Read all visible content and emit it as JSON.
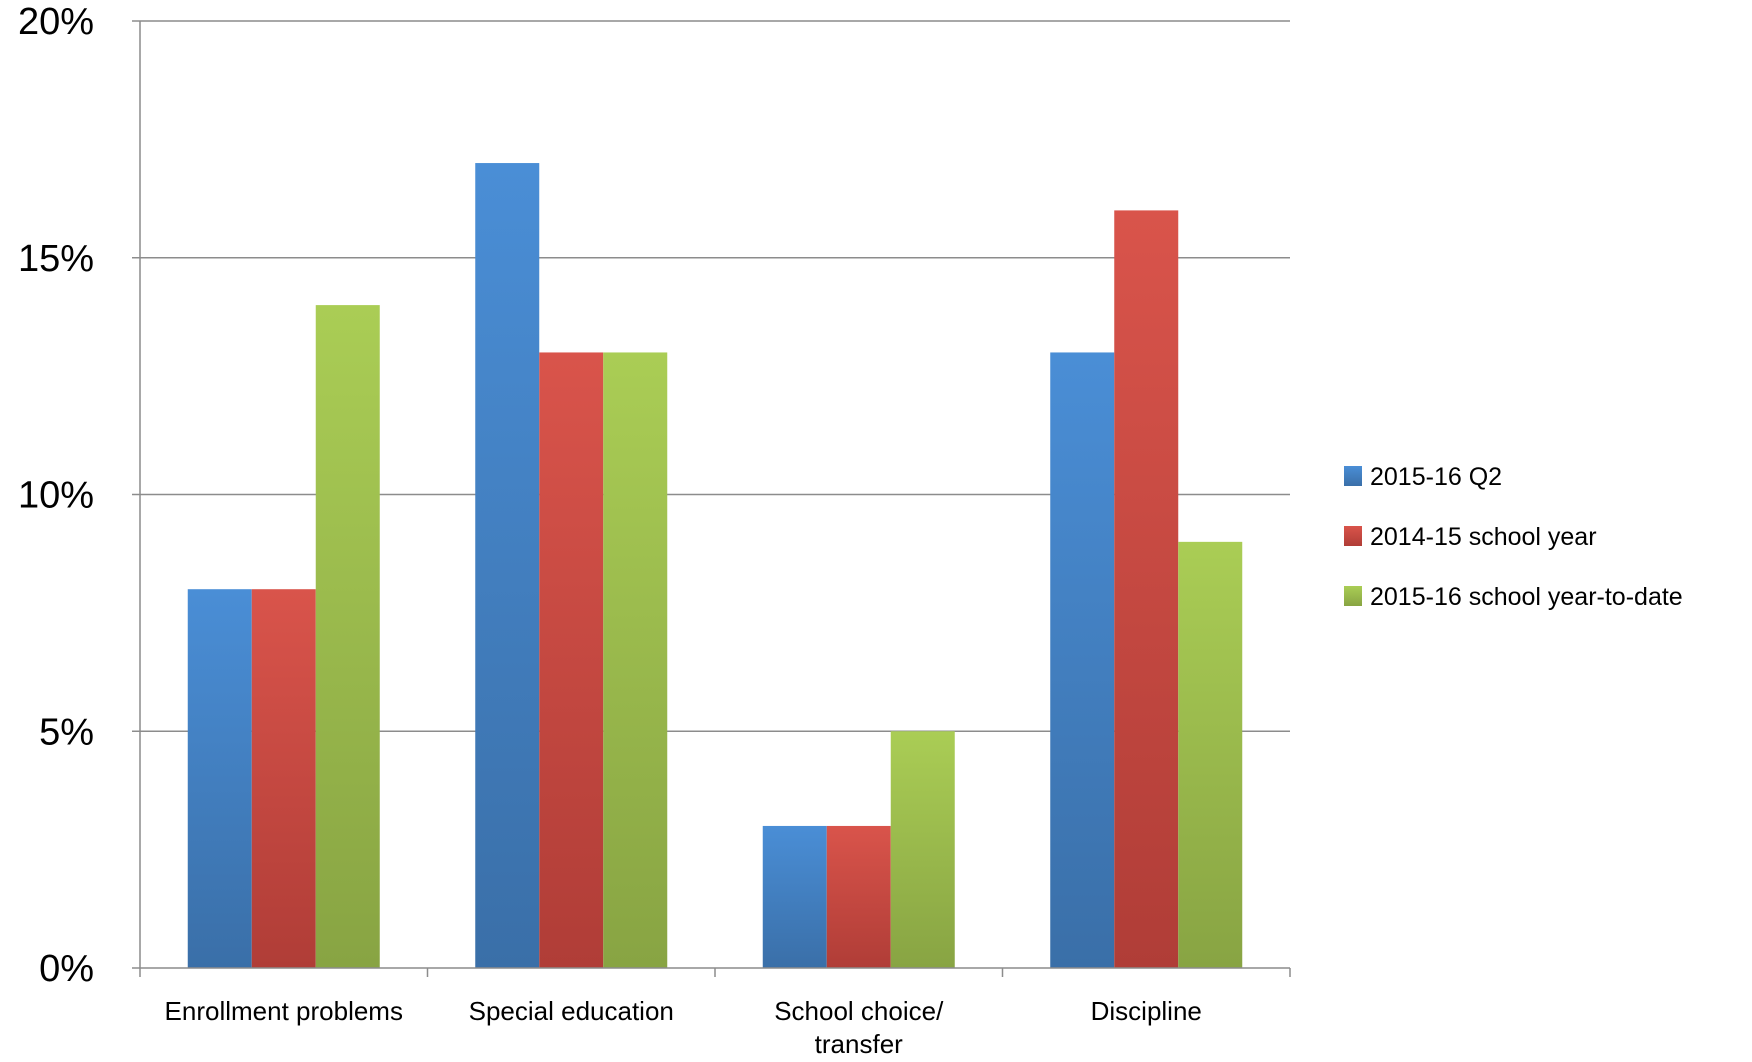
{
  "chart_data": {
    "type": "bar",
    "categories": [
      "Enrollment problems",
      "Special education",
      "School choice/\ntransfer",
      "Discipline"
    ],
    "series": [
      {
        "name": "2015-16 Q2",
        "values": [
          8,
          17,
          3,
          13
        ],
        "color": "#4a8ed6",
        "color_dark": "#3a6fa8"
      },
      {
        "name": "2014-15 school year",
        "values": [
          8,
          13,
          3,
          16
        ],
        "color": "#d9544b",
        "color_dark": "#b03d37"
      },
      {
        "name": "2015-16 school year-to-date",
        "values": [
          14,
          13,
          5,
          9
        ],
        "color": "#aacd55",
        "color_dark": "#88a443"
      }
    ],
    "yticks": [
      "0%",
      "5%",
      "10%",
      "15%",
      "20%"
    ],
    "ylim": [
      0,
      20
    ],
    "grid": true,
    "legend": "right",
    "title": "",
    "xlabel": "",
    "ylabel": ""
  }
}
